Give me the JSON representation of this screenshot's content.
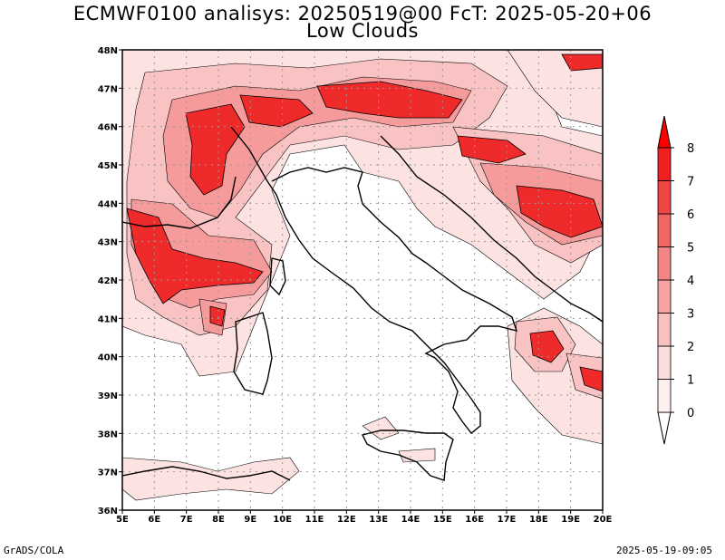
{
  "header": {
    "title_line1": "ECMWF0100 analisys: 20250519@00 FcT: 2025-05-20+06",
    "title_line2": "Low Clouds"
  },
  "footer": {
    "left": "GrADS/COLA",
    "right": "2025-05-19-09:05"
  },
  "map": {
    "lon_labels": [
      "5E",
      "6E",
      "7E",
      "8E",
      "9E",
      "10E",
      "11E",
      "12E",
      "13E",
      "14E",
      "15E",
      "16E",
      "17E",
      "18E",
      "19E",
      "20E"
    ],
    "lat_labels": [
      "48N",
      "47N",
      "46N",
      "45N",
      "44N",
      "43N",
      "42N",
      "41N",
      "40N",
      "39N",
      "38N",
      "37N",
      "36N"
    ],
    "lon_range": [
      5,
      20
    ],
    "lat_range": [
      36,
      48
    ],
    "grid": "dotted"
  },
  "colorbar": {
    "labels": [
      "0",
      "1",
      "2",
      "3",
      "4",
      "5",
      "6",
      "7",
      "8"
    ],
    "colors": [
      "#fff0f0",
      "#fcdcdc",
      "#f9c0c0",
      "#f7a3a3",
      "#f48585",
      "#f26565",
      "#f04545",
      "#f02020",
      "#ff0000"
    ],
    "extend": "both"
  },
  "colors": {
    "c1": "#fde2e2",
    "c2": "#f9c3c3",
    "c3": "#f59b9b",
    "c4": "#f06a6a",
    "c5": "#ef2a2a"
  }
}
